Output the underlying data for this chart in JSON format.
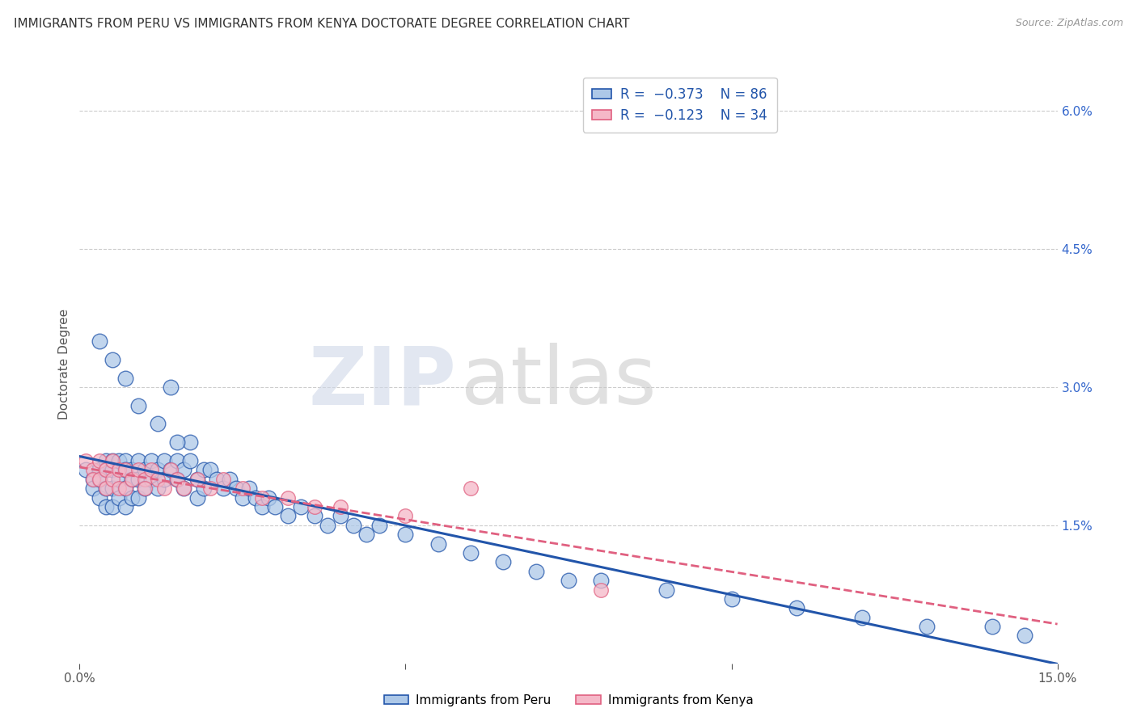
{
  "title": "IMMIGRANTS FROM PERU VS IMMIGRANTS FROM KENYA DOCTORATE DEGREE CORRELATION CHART",
  "source": "Source: ZipAtlas.com",
  "ylabel": "Doctorate Degree",
  "xlim": [
    0.0,
    0.15
  ],
  "ylim": [
    0.0,
    0.065
  ],
  "peru_R": -0.373,
  "peru_N": 86,
  "kenya_R": -0.123,
  "kenya_N": 34,
  "peru_color": "#adc8e8",
  "kenya_color": "#f5b8c8",
  "peru_line_color": "#2255aa",
  "kenya_line_color": "#e06080",
  "legend_peru_label": "Immigrants from Peru",
  "legend_kenya_label": "Immigrants from Kenya",
  "watermark_zip": "ZIP",
  "watermark_atlas": "atlas",
  "background_color": "#ffffff",
  "peru_x": [
    0.001,
    0.002,
    0.002,
    0.003,
    0.003,
    0.003,
    0.004,
    0.004,
    0.004,
    0.004,
    0.005,
    0.005,
    0.005,
    0.005,
    0.006,
    0.006,
    0.006,
    0.007,
    0.007,
    0.007,
    0.007,
    0.008,
    0.008,
    0.008,
    0.009,
    0.009,
    0.009,
    0.01,
    0.01,
    0.011,
    0.011,
    0.012,
    0.012,
    0.013,
    0.013,
    0.014,
    0.014,
    0.015,
    0.015,
    0.016,
    0.016,
    0.017,
    0.017,
    0.018,
    0.018,
    0.019,
    0.019,
    0.02,
    0.021,
    0.022,
    0.023,
    0.024,
    0.025,
    0.026,
    0.027,
    0.028,
    0.029,
    0.03,
    0.032,
    0.034,
    0.036,
    0.038,
    0.04,
    0.042,
    0.044,
    0.046,
    0.05,
    0.055,
    0.06,
    0.065,
    0.07,
    0.075,
    0.08,
    0.09,
    0.1,
    0.11,
    0.12,
    0.13,
    0.14,
    0.145,
    0.003,
    0.005,
    0.007,
    0.009,
    0.012,
    0.015
  ],
  "peru_y": [
    0.021,
    0.02,
    0.019,
    0.021,
    0.02,
    0.018,
    0.022,
    0.021,
    0.019,
    0.017,
    0.022,
    0.021,
    0.019,
    0.017,
    0.022,
    0.02,
    0.018,
    0.022,
    0.021,
    0.019,
    0.017,
    0.021,
    0.02,
    0.018,
    0.022,
    0.02,
    0.018,
    0.021,
    0.019,
    0.022,
    0.02,
    0.021,
    0.019,
    0.022,
    0.02,
    0.03,
    0.021,
    0.022,
    0.02,
    0.021,
    0.019,
    0.024,
    0.022,
    0.02,
    0.018,
    0.021,
    0.019,
    0.021,
    0.02,
    0.019,
    0.02,
    0.019,
    0.018,
    0.019,
    0.018,
    0.017,
    0.018,
    0.017,
    0.016,
    0.017,
    0.016,
    0.015,
    0.016,
    0.015,
    0.014,
    0.015,
    0.014,
    0.013,
    0.012,
    0.011,
    0.01,
    0.009,
    0.009,
    0.008,
    0.007,
    0.006,
    0.005,
    0.004,
    0.004,
    0.003,
    0.035,
    0.033,
    0.031,
    0.028,
    0.026,
    0.024
  ],
  "kenya_x": [
    0.001,
    0.002,
    0.002,
    0.003,
    0.003,
    0.004,
    0.004,
    0.005,
    0.005,
    0.006,
    0.006,
    0.007,
    0.007,
    0.008,
    0.009,
    0.01,
    0.01,
    0.011,
    0.012,
    0.013,
    0.014,
    0.015,
    0.016,
    0.018,
    0.02,
    0.022,
    0.025,
    0.028,
    0.032,
    0.036,
    0.04,
    0.05,
    0.06,
    0.08
  ],
  "kenya_y": [
    0.022,
    0.021,
    0.02,
    0.022,
    0.02,
    0.021,
    0.019,
    0.022,
    0.02,
    0.021,
    0.019,
    0.021,
    0.019,
    0.02,
    0.021,
    0.02,
    0.019,
    0.021,
    0.02,
    0.019,
    0.021,
    0.02,
    0.019,
    0.02,
    0.019,
    0.02,
    0.019,
    0.018,
    0.018,
    0.017,
    0.017,
    0.016,
    0.019,
    0.008
  ]
}
